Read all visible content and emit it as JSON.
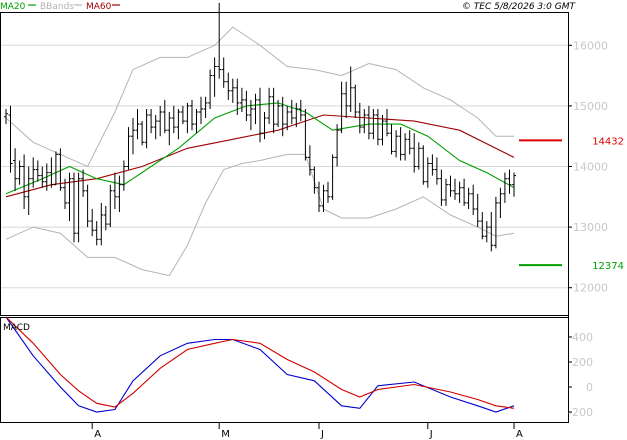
{
  "chart_data": [
    {
      "type": "ohlc",
      "panel": "price",
      "legend": [
        {
          "label": "MA20",
          "color": "#00a000"
        },
        {
          "label": "BBands",
          "color": "#b4b4b4"
        },
        {
          "label": "MA60",
          "color": "#a00000"
        }
      ],
      "copyright": "© TEC 5/8/2026 3:0 GMT",
      "y_ticks": [
        "16000",
        "15000",
        "14000",
        "13000",
        "12000"
      ],
      "y_tick_values": [
        16000,
        15000,
        14000,
        13000,
        12000
      ],
      "ylim": [
        11550,
        16550
      ],
      "grid": true,
      "levels": [
        {
          "label": "14432",
          "value": 14432,
          "color": "#e00000"
        },
        {
          "label": "12374",
          "value": 12374,
          "color": "#00a000"
        }
      ],
      "bars_count": 113,
      "bars": [
        [
          14820,
          14950,
          14700,
          14870
        ],
        [
          14850,
          15000,
          13900,
          14050
        ],
        [
          14100,
          14300,
          13600,
          13800
        ],
        [
          13800,
          14100,
          13700,
          14000
        ],
        [
          14000,
          14200,
          13300,
          13500
        ],
        [
          13500,
          14000,
          13200,
          13800
        ],
        [
          13800,
          14150,
          13650,
          13950
        ],
        [
          13950,
          14100,
          13750,
          13850
        ],
        [
          13850,
          14000,
          13650,
          13750
        ],
        [
          13750,
          14050,
          13600,
          13900
        ],
        [
          13900,
          14150,
          13650,
          13700
        ],
        [
          13700,
          14250,
          13700,
          14200
        ],
        [
          14200,
          14300,
          13600,
          13650
        ],
        [
          13650,
          13800,
          13300,
          13400
        ],
        [
          13400,
          13900,
          13100,
          13800
        ],
        [
          13800,
          13900,
          12750,
          12900
        ],
        [
          12900,
          13900,
          12750,
          13800
        ],
        [
          13800,
          13950,
          13500,
          13600
        ],
        [
          13600,
          13700,
          13000,
          13100
        ],
        [
          13100,
          13300,
          12850,
          12950
        ],
        [
          12950,
          13100,
          12700,
          12800
        ],
        [
          12800,
          13400,
          12700,
          13200
        ],
        [
          13200,
          13350,
          12950,
          13050
        ],
        [
          13050,
          13700,
          13000,
          13600
        ],
        [
          13600,
          13900,
          13300,
          13500
        ],
        [
          13500,
          13850,
          13250,
          13700
        ],
        [
          13700,
          14100,
          13600,
          14000
        ],
        [
          14000,
          14650,
          13950,
          14500
        ],
        [
          14500,
          14800,
          14200,
          14600
        ],
        [
          14600,
          14950,
          14450,
          14700
        ],
        [
          14700,
          14750,
          14350,
          14400
        ],
        [
          14400,
          14950,
          14300,
          14850
        ],
        [
          14850,
          14950,
          14550,
          14650
        ],
        [
          14650,
          14850,
          14450,
          14750
        ],
        [
          14750,
          15000,
          14500,
          14900
        ],
        [
          14900,
          15100,
          14550,
          14600
        ],
        [
          14600,
          14900,
          14350,
          14800
        ],
        [
          14800,
          15000,
          14550,
          14650
        ],
        [
          14650,
          14950,
          14450,
          14900
        ],
        [
          14900,
          15000,
          14700,
          14750
        ],
        [
          14750,
          15050,
          14550,
          15000
        ],
        [
          15000,
          15100,
          14600,
          14700
        ],
        [
          14700,
          14950,
          14550,
          14900
        ],
        [
          14900,
          15150,
          14700,
          14950
        ],
        [
          14950,
          15150,
          14800,
          15050
        ],
        [
          15050,
          15600,
          14950,
          15500
        ],
        [
          15500,
          15800,
          15150,
          15650
        ],
        [
          15650,
          16700,
          15450,
          15600
        ],
        [
          15600,
          15800,
          15300,
          15400
        ],
        [
          15400,
          15550,
          15100,
          15250
        ],
        [
          15250,
          15450,
          15050,
          15300
        ],
        [
          15300,
          15450,
          14850,
          15050
        ],
        [
          15050,
          15300,
          14900,
          15100
        ],
        [
          15100,
          15250,
          14750,
          14850
        ],
        [
          14850,
          15100,
          14600,
          14950
        ],
        [
          14950,
          15200,
          14700,
          15100
        ],
        [
          15100,
          15300,
          14400,
          14550
        ],
        [
          14550,
          14900,
          14450,
          14800
        ],
        [
          14800,
          15300,
          14700,
          15150
        ],
        [
          15150,
          15300,
          14550,
          14700
        ],
        [
          14700,
          15100,
          14650,
          15000
        ],
        [
          15000,
          15150,
          14500,
          14700
        ],
        [
          14700,
          15000,
          14600,
          14900
        ],
        [
          14900,
          15100,
          14700,
          14800
        ],
        [
          14800,
          15050,
          14650,
          14950
        ],
        [
          14950,
          15100,
          14750,
          14850
        ],
        [
          14850,
          14950,
          14100,
          14150
        ],
        [
          14150,
          14350,
          13850,
          13950
        ],
        [
          13950,
          14000,
          13550,
          13650
        ],
        [
          13650,
          13750,
          13250,
          13350
        ],
        [
          13350,
          13700,
          13250,
          13600
        ],
        [
          13600,
          13750,
          13400,
          13500
        ],
        [
          13500,
          14200,
          13450,
          14150
        ],
        [
          14150,
          14700,
          14000,
          14600
        ],
        [
          14600,
          15400,
          14550,
          15200
        ],
        [
          15200,
          15400,
          14800,
          15000
        ],
        [
          15000,
          15650,
          14900,
          15300
        ],
        [
          15300,
          15350,
          14800,
          14900
        ],
        [
          14900,
          15050,
          14550,
          14650
        ],
        [
          14650,
          14950,
          14550,
          14850
        ],
        [
          14850,
          15000,
          14450,
          14550
        ],
        [
          14550,
          14950,
          14450,
          14850
        ],
        [
          14850,
          14950,
          14350,
          14450
        ],
        [
          14450,
          14850,
          14350,
          14750
        ],
        [
          14750,
          14950,
          14500,
          14550
        ],
        [
          14550,
          14700,
          14200,
          14250
        ],
        [
          14250,
          14600,
          14150,
          14500
        ],
        [
          14500,
          14650,
          14100,
          14200
        ],
        [
          14200,
          14550,
          14100,
          14450
        ],
        [
          14450,
          14600,
          14200,
          14300
        ],
        [
          14300,
          14550,
          13900,
          14000
        ],
        [
          14000,
          14400,
          13950,
          14300
        ],
        [
          14300,
          14350,
          13700,
          13750
        ],
        [
          13750,
          14150,
          13650,
          14050
        ],
        [
          14050,
          14200,
          13850,
          13950
        ],
        [
          13950,
          14150,
          13700,
          13800
        ],
        [
          13800,
          13950,
          13350,
          13450
        ],
        [
          13450,
          13800,
          13350,
          13700
        ],
        [
          13700,
          13850,
          13500,
          13600
        ],
        [
          13600,
          13800,
          13450,
          13550
        ],
        [
          13550,
          13750,
          13400,
          13650
        ],
        [
          13650,
          13800,
          13350,
          13400
        ],
        [
          13400,
          13650,
          13300,
          13550
        ],
        [
          13550,
          13700,
          13200,
          13300
        ],
        [
          13300,
          13550,
          13000,
          13100
        ],
        [
          13100,
          13250,
          12800,
          12850
        ],
        [
          12850,
          13100,
          12750,
          13000
        ],
        [
          13000,
          13250,
          12600,
          12700
        ],
        [
          12700,
          13500,
          12650,
          13400
        ],
        [
          13400,
          13650,
          13150,
          13550
        ],
        [
          13550,
          13900,
          13400,
          13800
        ],
        [
          13800,
          13950,
          13550,
          13700
        ],
        [
          13700,
          13900,
          13500,
          13850
        ]
      ],
      "ma20": [
        [
          0,
          13550
        ],
        [
          8,
          13800
        ],
        [
          14,
          14000
        ],
        [
          20,
          13800
        ],
        [
          26,
          13700
        ],
        [
          32,
          14000
        ],
        [
          38,
          14300
        ],
        [
          46,
          14800
        ],
        [
          53,
          15000
        ],
        [
          60,
          15050
        ],
        [
          66,
          14900
        ],
        [
          72,
          14600
        ],
        [
          80,
          14700
        ],
        [
          87,
          14700
        ],
        [
          93,
          14500
        ],
        [
          100,
          14100
        ],
        [
          106,
          13900
        ],
        [
          112,
          13650
        ]
      ],
      "ma60": [
        [
          0,
          13500
        ],
        [
          10,
          13700
        ],
        [
          20,
          13800
        ],
        [
          30,
          14000
        ],
        [
          40,
          14300
        ],
        [
          50,
          14450
        ],
        [
          60,
          14600
        ],
        [
          70,
          14850
        ],
        [
          80,
          14800
        ],
        [
          90,
          14750
        ],
        [
          100,
          14600
        ],
        [
          112,
          14150
        ]
      ],
      "bb_upper": [
        [
          0,
          14800
        ],
        [
          6,
          14400
        ],
        [
          12,
          14200
        ],
        [
          18,
          14000
        ],
        [
          24,
          14900
        ],
        [
          28,
          15600
        ],
        [
          34,
          15800
        ],
        [
          40,
          15800
        ],
        [
          46,
          16000
        ],
        [
          50,
          16300
        ],
        [
          56,
          16000
        ],
        [
          62,
          15650
        ],
        [
          68,
          15600
        ],
        [
          74,
          15500
        ],
        [
          80,
          15700
        ],
        [
          86,
          15600
        ],
        [
          92,
          15300
        ],
        [
          98,
          15100
        ],
        [
          104,
          14800
        ],
        [
          108,
          14500
        ],
        [
          112,
          14500
        ]
      ],
      "bb_lower": [
        [
          0,
          12800
        ],
        [
          6,
          13000
        ],
        [
          12,
          12900
        ],
        [
          18,
          12500
        ],
        [
          24,
          12500
        ],
        [
          30,
          12300
        ],
        [
          36,
          12200
        ],
        [
          40,
          12700
        ],
        [
          44,
          13400
        ],
        [
          48,
          13950
        ],
        [
          52,
          14050
        ],
        [
          56,
          14100
        ],
        [
          62,
          14200
        ],
        [
          66,
          14200
        ],
        [
          70,
          13300
        ],
        [
          74,
          13150
        ],
        [
          80,
          13150
        ],
        [
          86,
          13300
        ],
        [
          92,
          13500
        ],
        [
          98,
          13200
        ],
        [
          104,
          13000
        ],
        [
          108,
          12850
        ],
        [
          112,
          12900
        ]
      ]
    },
    {
      "type": "line",
      "panel": "macd",
      "title": "MACD",
      "y_ticks": [
        "400",
        "200",
        "0",
        "-200"
      ],
      "y_tick_values": [
        400,
        200,
        0,
        -200
      ],
      "ylim": [
        -280,
        560
      ],
      "grid": false,
      "series": [
        {
          "color": "#0000cc",
          "points": [
            [
              0,
              560
            ],
            [
              6,
              250
            ],
            [
              12,
              0
            ],
            [
              16,
              -150
            ],
            [
              20,
              -200
            ],
            [
              24,
              -180
            ],
            [
              28,
              50
            ],
            [
              34,
              250
            ],
            [
              40,
              350
            ],
            [
              46,
              380
            ],
            [
              50,
              380
            ],
            [
              56,
              300
            ],
            [
              62,
              100
            ],
            [
              68,
              50
            ],
            [
              74,
              -150
            ],
            [
              78,
              -170
            ],
            [
              82,
              10
            ],
            [
              90,
              40
            ],
            [
              98,
              -80
            ],
            [
              104,
              -150
            ],
            [
              108,
              -200
            ],
            [
              112,
              -150
            ]
          ]
        },
        {
          "color": "#d00000",
          "points": [
            [
              0,
              560
            ],
            [
              6,
              350
            ],
            [
              12,
              100
            ],
            [
              16,
              -30
            ],
            [
              20,
              -130
            ],
            [
              24,
              -160
            ],
            [
              28,
              -50
            ],
            [
              34,
              150
            ],
            [
              40,
              300
            ],
            [
              46,
              350
            ],
            [
              50,
              380
            ],
            [
              56,
              350
            ],
            [
              62,
              220
            ],
            [
              68,
              120
            ],
            [
              74,
              -20
            ],
            [
              78,
              -80
            ],
            [
              82,
              -20
            ],
            [
              90,
              20
            ],
            [
              98,
              -40
            ],
            [
              104,
              -100
            ],
            [
              108,
              -150
            ],
            [
              112,
              -170
            ]
          ]
        }
      ]
    }
  ],
  "x_axis": {
    "labels": [
      "A",
      "M",
      "J",
      "J",
      "A"
    ],
    "positions": [
      19,
      47,
      69,
      93,
      112
    ]
  }
}
